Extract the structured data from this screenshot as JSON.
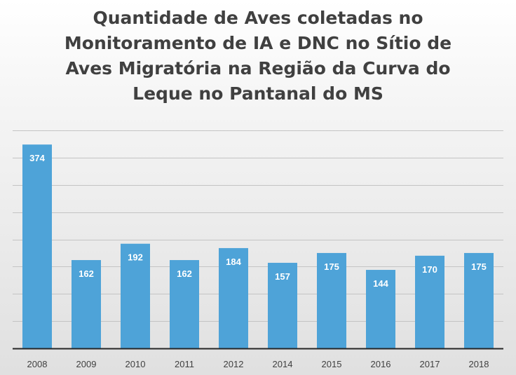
{
  "chart_data": {
    "type": "bar",
    "title_lines": [
      "Quantidade de Aves coletadas no",
      "Monitoramento de IA e DNC no Sítio de",
      "Aves Migratória na Região da Curva do",
      "Leque no Pantanal do MS"
    ],
    "categories": [
      "2008",
      "2009",
      "2010",
      "2011",
      "2012",
      "2014",
      "2015",
      "2016",
      "2017",
      "2018"
    ],
    "values": [
      374,
      162,
      192,
      162,
      184,
      157,
      175,
      144,
      170,
      175
    ],
    "ylim": [
      0,
      400
    ],
    "y_gridline_step": 50,
    "grid": true,
    "y_tick_labels_shown": false,
    "data_labels": "inside-top",
    "bar_color": "#4ea3d8",
    "data_label_color": "#ffffff"
  }
}
